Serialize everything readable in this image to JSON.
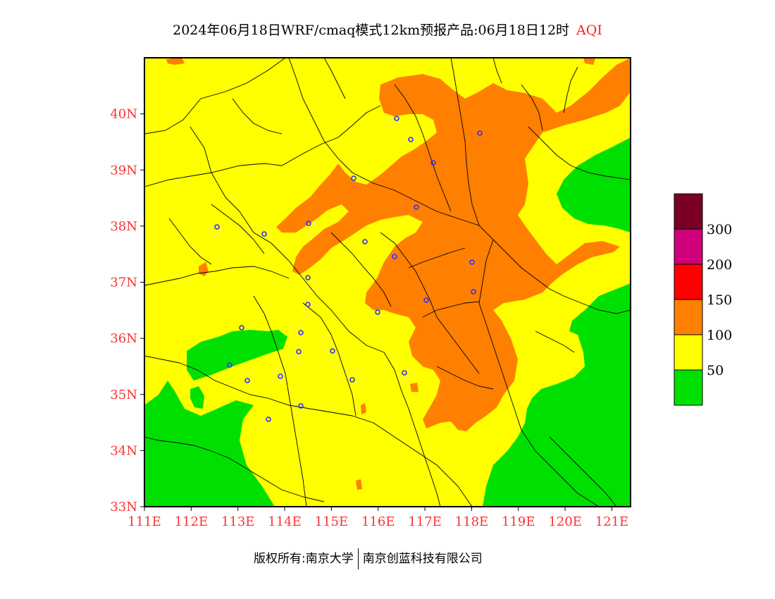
{
  "title": {
    "main": "2024年06月18日WRF/cmaq模式12km预报产品:06月18日12时",
    "variable": "AQI"
  },
  "footer": {
    "copyright": "版权所有:南京大学",
    "company": "南京创蓝科技有限公司"
  },
  "map": {
    "lon_range": [
      111,
      121.4
    ],
    "lat_range": [
      33,
      41
    ],
    "lat_ticks": [
      "33N",
      "34N",
      "35N",
      "36N",
      "37N",
      "38N",
      "39N",
      "40N"
    ],
    "lon_ticks": [
      "111E",
      "112E",
      "113E",
      "114E",
      "115E",
      "116E",
      "117E",
      "118E",
      "119E",
      "120E",
      "121E"
    ]
  },
  "legend": {
    "colors": [
      "#00e000",
      "#ffff00",
      "#ff7f00",
      "#ff0000",
      "#d0007a",
      "#7a0025"
    ],
    "labels": [
      "50",
      "100",
      "150",
      "200",
      "300"
    ]
  },
  "colors": {
    "good": "#00e000",
    "moderate": "#ffff00",
    "sensitive": "#ff7f00",
    "label_red": "#ff3030",
    "city_marker": "#3030ff"
  }
}
